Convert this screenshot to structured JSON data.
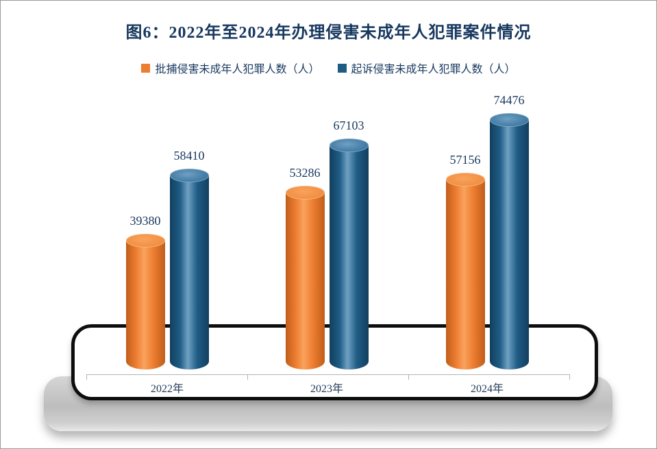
{
  "figure": {
    "title": "图6：2022年至2024年办理侵害未成年人犯罪案件情况"
  },
  "chart_data": {
    "type": "bar",
    "bar_style": "cylinder-3d",
    "title": "图6：2022年至2024年办理侵害未成年人犯罪案件情况",
    "categories": [
      "2022年",
      "2023年",
      "2024年"
    ],
    "series": [
      {
        "name": "批捕侵害未成年人犯罪人数（人）",
        "values": [
          39380,
          53286,
          57156
        ],
        "color": "#ED7D31",
        "color_light": "#F9A35C",
        "color_dark": "#C05E1A",
        "color_top": "#F08C3F"
      },
      {
        "name": "起诉侵害未成年人犯罪人数（人）",
        "values": [
          58410,
          67103,
          74476
        ],
        "color": "#1F5C85",
        "color_light": "#6FA0C2",
        "color_dark": "#123F5E",
        "color_top": "#3A74A0"
      }
    ],
    "legend_position": "top",
    "grid": false,
    "ylim": [
      0,
      80000
    ],
    "value_labels_shown": true,
    "text_color": "#17375E"
  }
}
